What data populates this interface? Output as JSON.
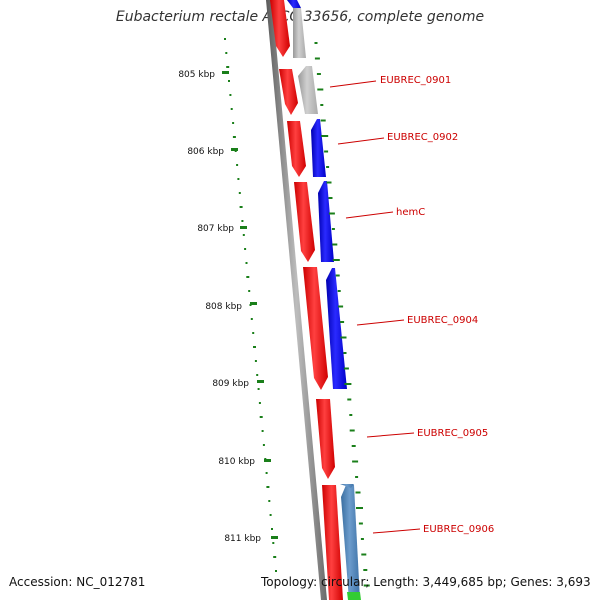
{
  "title": "Eubacterium rectale ATCC 33656, complete genome",
  "footer": {
    "accession": "Accession: NC_012781",
    "summary": "Topology: circular; Length: 3,449,685 bp; Genes: 3,693"
  },
  "ruler": {
    "ticks": [
      "805 kbp",
      "806 kbp",
      "807 kbp",
      "808 kbp",
      "809 kbp",
      "810 kbp",
      "811 kbp"
    ]
  },
  "gene_labels": [
    "EUBREC_0901",
    "EUBREC_0902",
    "hemC",
    "EUBREC_0904",
    "EUBREC_0905",
    "EUBREC_0906"
  ],
  "colors": {
    "forward_cds": "#ff0000",
    "reverse_cds_blue": "#0000ee",
    "reverse_cds_grey": "#bbbbbb",
    "reverse_cds_steel": "#4a7fb5",
    "other_feature": "#33cc33",
    "gc_skew": "#1a7f1a",
    "backbone": "#888888",
    "label_text": "#cc0000"
  }
}
